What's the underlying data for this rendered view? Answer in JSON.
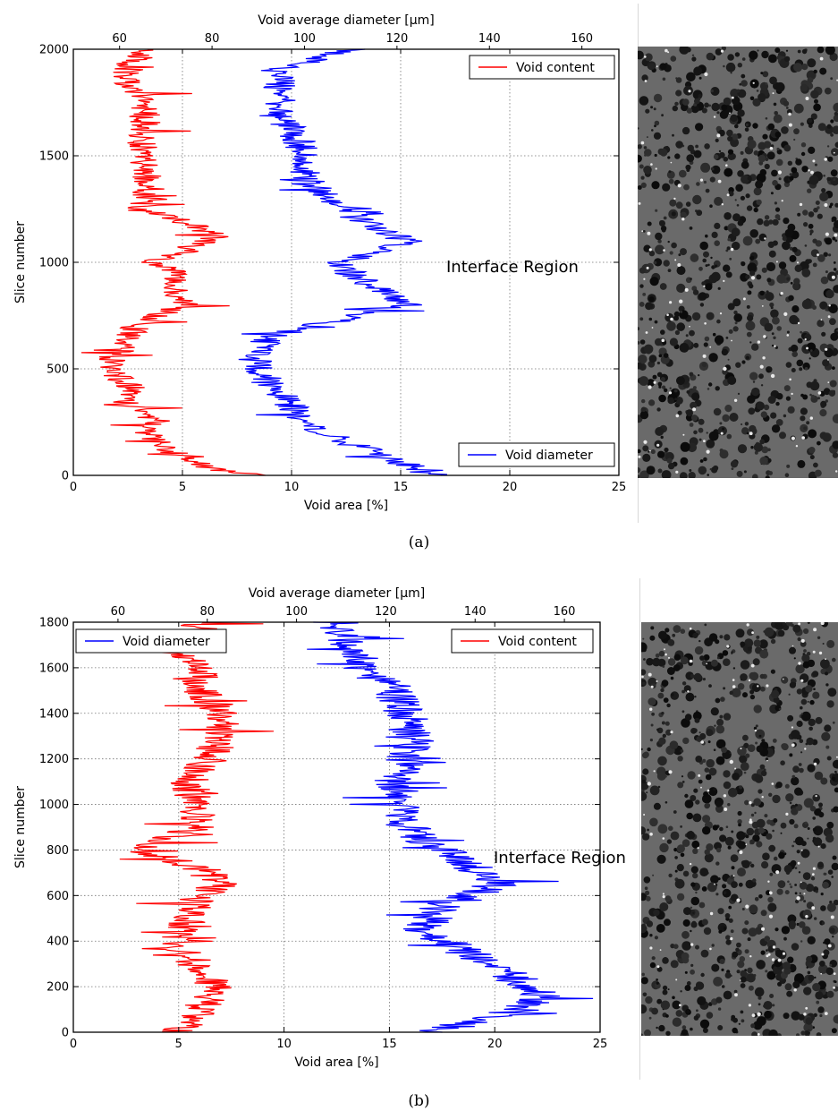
{
  "chart_data": [
    {
      "id": "a",
      "type": "line",
      "caption": "(a)",
      "top_axis_label": "Void average diameter [μm]",
      "top_ticks": [
        60,
        80,
        100,
        120,
        140,
        160
      ],
      "top_xlim": [
        50,
        168
      ],
      "xlabel": "Void area [%]",
      "xlim": [
        0,
        25
      ],
      "xticks": [
        0,
        5,
        10,
        15,
        20,
        25
      ],
      "ylabel": "Slice number",
      "ylim": [
        0,
        2000
      ],
      "yticks": [
        0,
        500,
        1000,
        1500,
        2000
      ],
      "grid": true,
      "annotation": "Interface Region",
      "legend_top": "Void content",
      "legend_bottom": "Void diameter",
      "series": [
        {
          "name": "Void content",
          "color": "#ff0000",
          "axis": "bottom",
          "jitter": 0.7,
          "points": [
            [
              8.5,
              0
            ],
            [
              6.5,
              30
            ],
            [
              5,
              80
            ],
            [
              3.8,
              150
            ],
            [
              3.5,
              250
            ],
            [
              3,
              300
            ],
            [
              2.2,
              350
            ],
            [
              2.8,
              400
            ],
            [
              2.2,
              450
            ],
            [
              1.5,
              500
            ],
            [
              1.8,
              550
            ],
            [
              2.5,
              600
            ],
            [
              2.8,
              700
            ],
            [
              4,
              760
            ],
            [
              5.2,
              800
            ],
            [
              4.8,
              860
            ],
            [
              4.6,
              950
            ],
            [
              3.5,
              1000
            ],
            [
              5,
              1050
            ],
            [
              6.5,
              1120
            ],
            [
              5.5,
              1180
            ],
            [
              3,
              1250
            ],
            [
              3.5,
              1350
            ],
            [
              3.2,
              1450
            ],
            [
              3.2,
              1550
            ],
            [
              3.2,
              1650
            ],
            [
              3.4,
              1750
            ],
            [
              2.5,
              1850
            ],
            [
              2.5,
              1930
            ],
            [
              3.5,
              2000
            ]
          ]
        },
        {
          "name": "Void diameter",
          "color": "#0000ff",
          "axis": "top",
          "jitter": 3.5,
          "points": [
            [
              128,
              0
            ],
            [
              122,
              50
            ],
            [
              110,
              150
            ],
            [
              100,
              250
            ],
            [
              96,
              350
            ],
            [
              92,
              450
            ],
            [
              89,
              550
            ],
            [
              92,
              650
            ],
            [
              112,
              750
            ],
            [
              122,
              800
            ],
            [
              118,
              850
            ],
            [
              110,
              950
            ],
            [
              108,
              1000
            ],
            [
              122,
              1100
            ],
            [
              112,
              1200
            ],
            [
              105,
              1300
            ],
            [
              100,
              1400
            ],
            [
              100,
              1500
            ],
            [
              98,
              1600
            ],
            [
              94,
              1700
            ],
            [
              95,
              1800
            ],
            [
              94,
              1900
            ],
            [
              110,
              2000
            ]
          ]
        }
      ]
    },
    {
      "id": "b",
      "type": "line",
      "caption": "(b)",
      "top_axis_label": "Void average diameter [μm]",
      "top_ticks": [
        60,
        80,
        100,
        120,
        140,
        160
      ],
      "top_xlim": [
        50,
        168
      ],
      "xlabel": "Void area [%]",
      "xlim": [
        0,
        25
      ],
      "xticks": [
        0,
        5,
        10,
        15,
        20,
        25
      ],
      "ylabel": "Slice number",
      "ylim": [
        0,
        1800
      ],
      "yticks": [
        0,
        200,
        400,
        600,
        800,
        1000,
        1200,
        1400,
        1600,
        1800
      ],
      "grid": true,
      "annotation": "Interface Region",
      "legend_left": "Void diameter",
      "legend_right": "Void content",
      "series": [
        {
          "name": "Void content",
          "color": "#ff0000",
          "axis": "bottom",
          "jitter": 0.9,
          "points": [
            [
              5,
              0
            ],
            [
              6,
              100
            ],
            [
              6.8,
              200
            ],
            [
              5.5,
              300
            ],
            [
              5,
              400
            ],
            [
              5.5,
              500
            ],
            [
              6,
              600
            ],
            [
              7,
              650
            ],
            [
              6,
              720
            ],
            [
              3,
              800
            ],
            [
              6,
              900
            ],
            [
              5.8,
              1000
            ],
            [
              5.5,
              1100
            ],
            [
              6.5,
              1200
            ],
            [
              7,
              1300
            ],
            [
              7,
              1400
            ],
            [
              6,
              1500
            ],
            [
              6,
              1600
            ],
            [
              5,
              1700
            ],
            [
              6,
              1760
            ]
          ]
        },
        {
          "name": "Void diameter",
          "color": "#0000ff",
          "axis": "top",
          "jitter": 5,
          "points": [
            [
              130,
              0
            ],
            [
              150,
              100
            ],
            [
              155,
              150
            ],
            [
              148,
              250
            ],
            [
              138,
              350
            ],
            [
              128,
              450
            ],
            [
              132,
              550
            ],
            [
              145,
              650
            ],
            [
              138,
              750
            ],
            [
              130,
              820
            ],
            [
              125,
              900
            ],
            [
              125,
              1000
            ],
            [
              122,
              1100
            ],
            [
              125,
              1200
            ],
            [
              126,
              1300
            ],
            [
              124,
              1400
            ],
            [
              122,
              1500
            ],
            [
              115,
              1600
            ],
            [
              112,
              1700
            ],
            [
              110,
              1780
            ]
          ]
        }
      ]
    }
  ]
}
